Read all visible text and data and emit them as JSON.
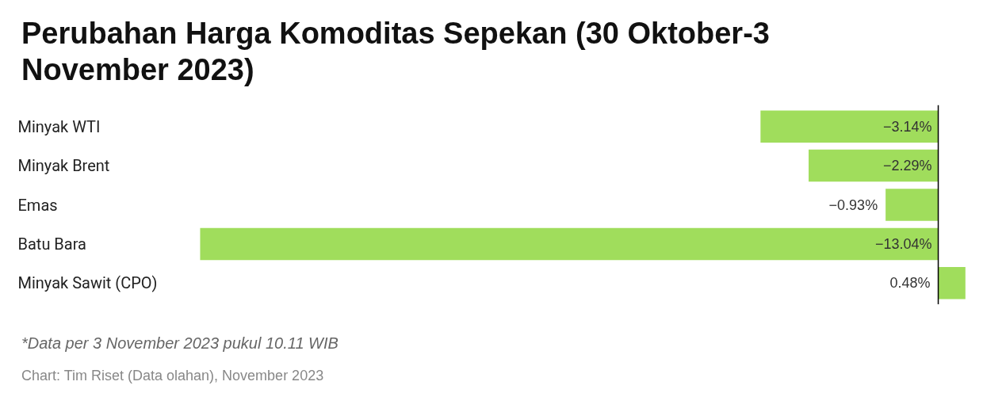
{
  "chart_data": {
    "type": "bar",
    "orientation": "horizontal",
    "title": "Perubahan Harga Komoditas Sepekan (30 Oktober-3 November 2023)",
    "categories": [
      "Minyak WTI",
      "Minyak Brent",
      "Emas",
      "Batu Bara",
      "Minyak Sawit (CPO)"
    ],
    "values": [
      -3.14,
      -2.29,
      -0.93,
      -13.04,
      0.48
    ],
    "value_labels": [
      "−3.14%",
      "−2.29%",
      "−0.93%",
      "−13.04%",
      "0.48%"
    ],
    "color": "#a0dd5c",
    "ref_lines": [
      {
        "axis": "x",
        "value": 0,
        "color": "#000000"
      }
    ],
    "grid": false,
    "annotations": [
      "*Data per 3 November 2023 pukul 10.11 WIB",
      "Chart: Tim Riset (Data olahan), November 2023"
    ]
  }
}
